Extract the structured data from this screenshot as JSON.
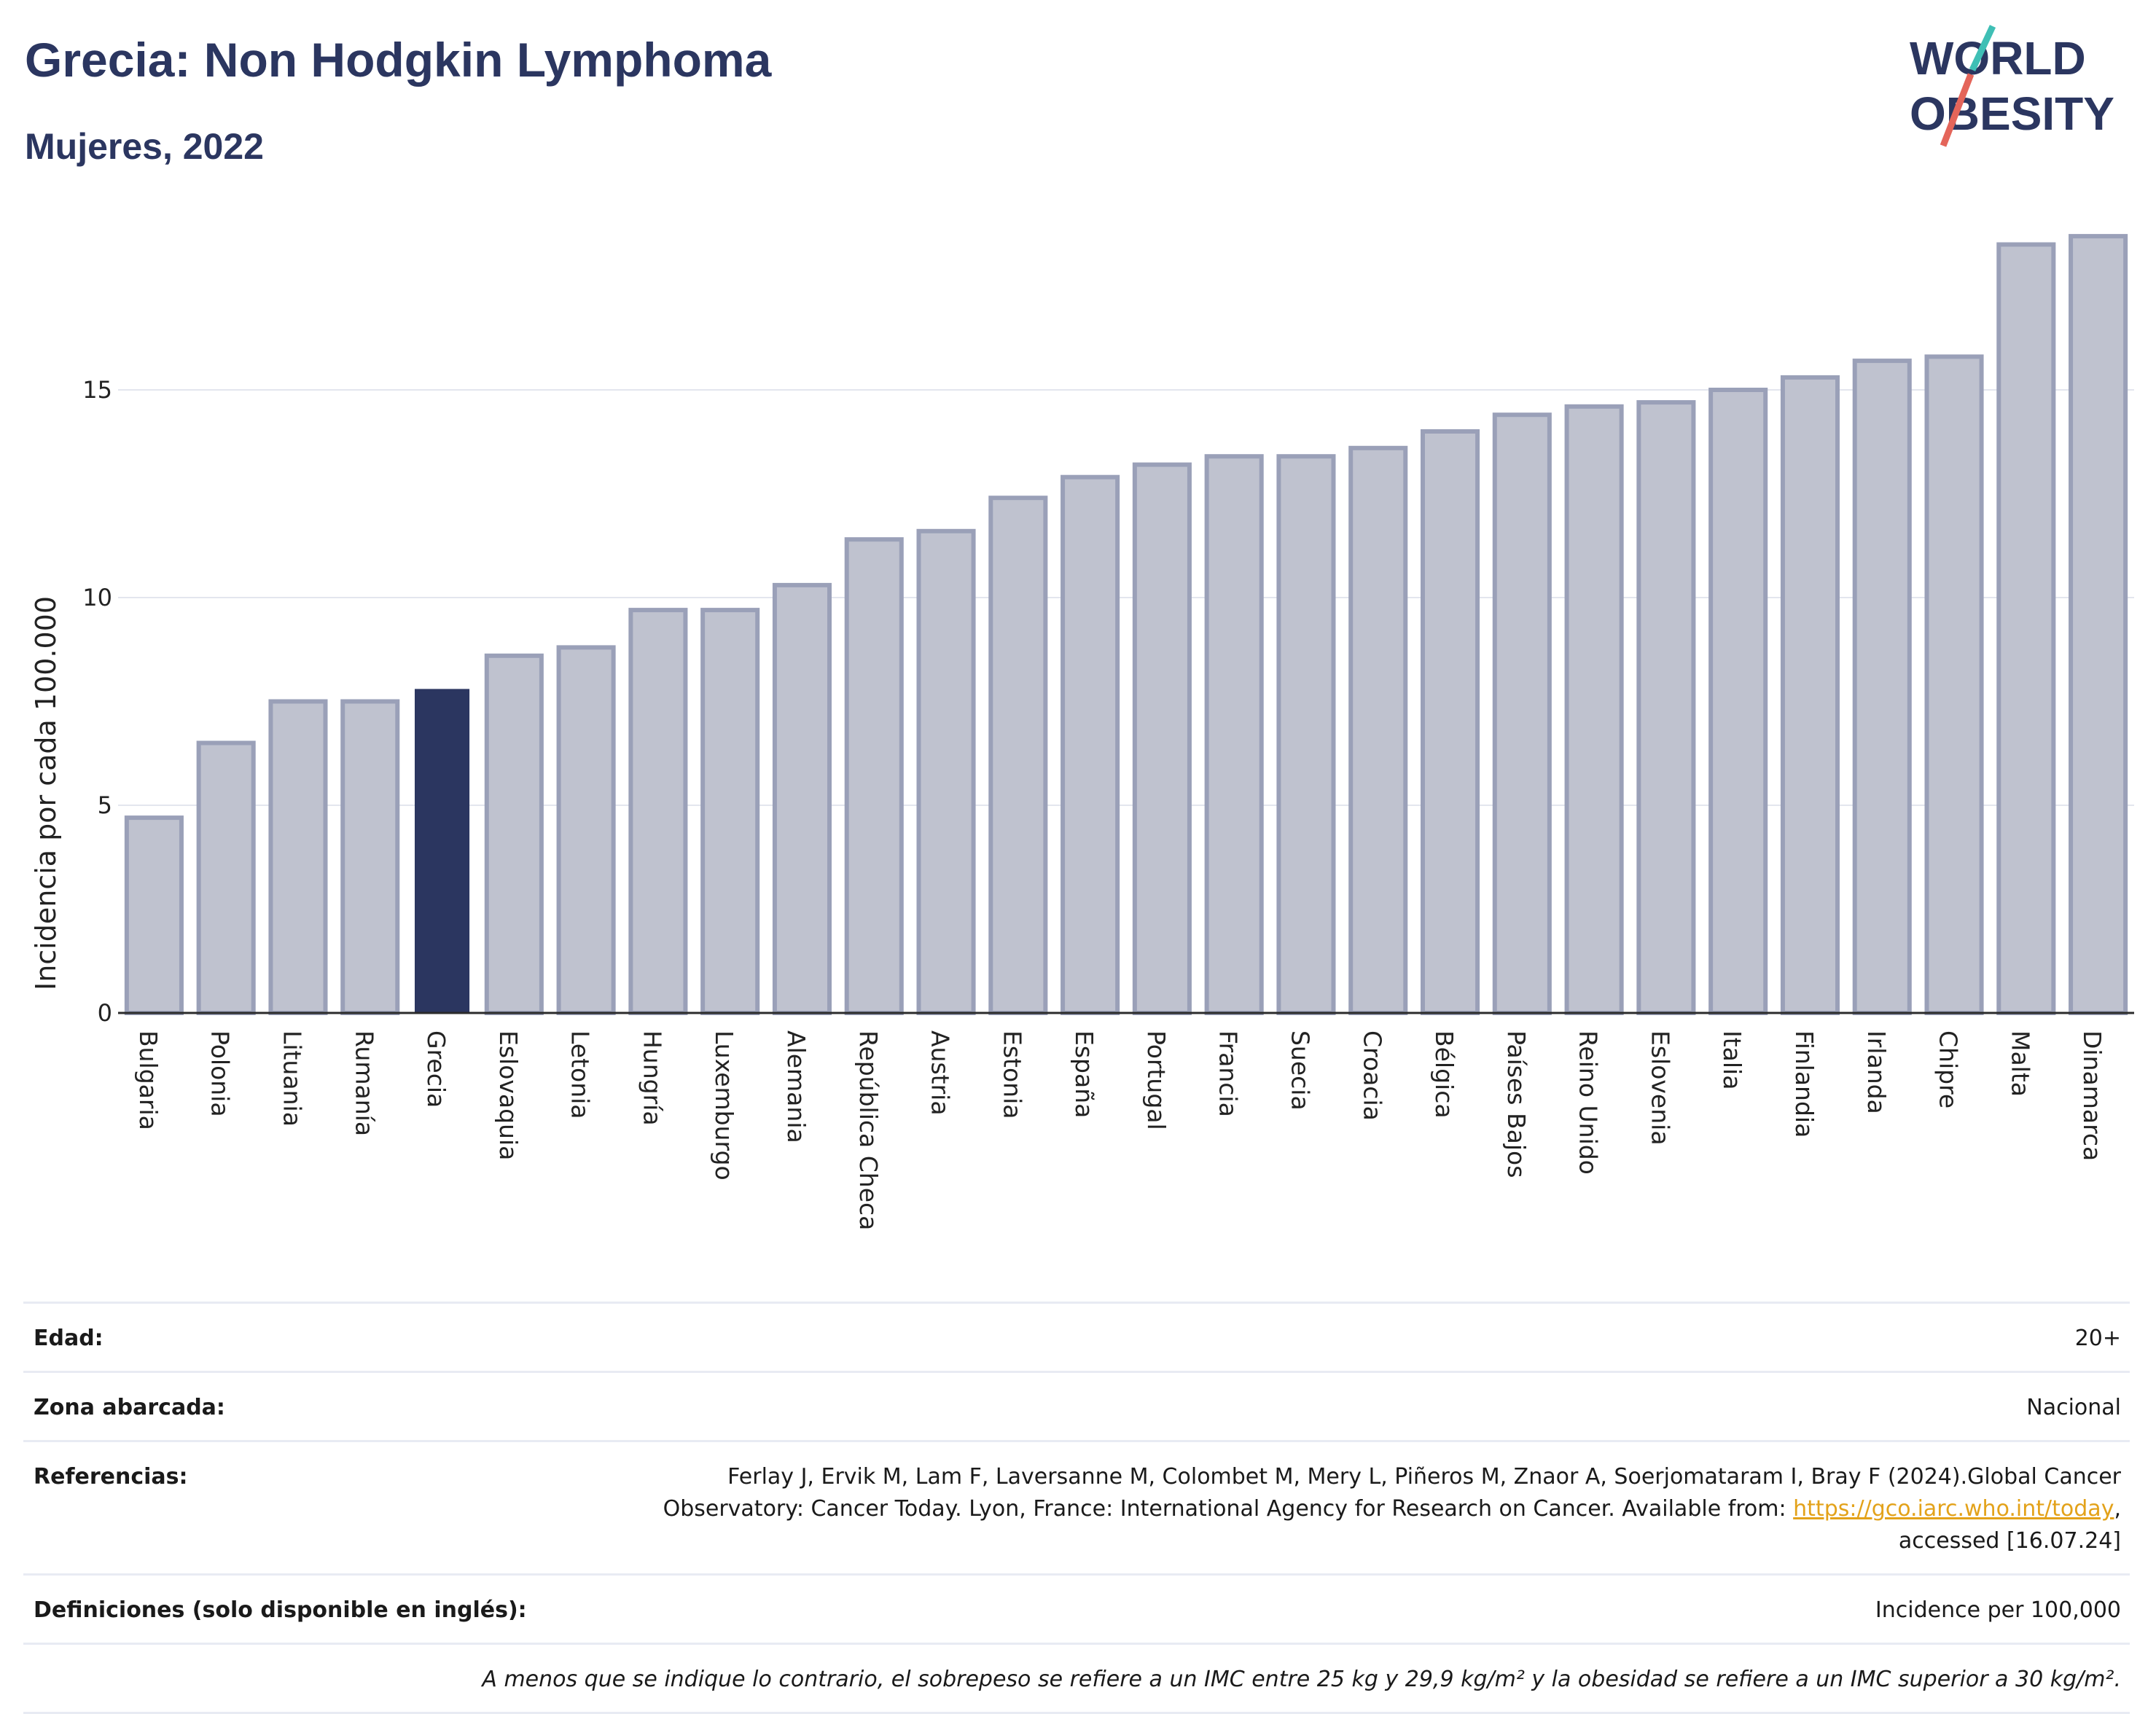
{
  "header": {
    "title": "Grecia: Non Hodgkin Lymphoma",
    "subtitle": "Mujeres, 2022"
  },
  "logo": {
    "line1": "WORLD",
    "line2": "OBESITY",
    "accent_colors": [
      "#3fbfb5",
      "#e4655a"
    ],
    "text_color": "#2b3660"
  },
  "chart_data": {
    "type": "bar",
    "ylabel": "Incidencia por cada 100.000",
    "ylim": [
      0,
      19
    ],
    "yticks": [
      0,
      5,
      10,
      15
    ],
    "grid": true,
    "highlight": "Grecia",
    "highlight_color": "#2b3660",
    "bar_color": "#bfc2cf",
    "categories": [
      "Bulgaria",
      "Polonia",
      "Lituania",
      "Rumanía",
      "Grecia",
      "Eslovaquia",
      "Letonia",
      "Hungría",
      "Luxemburgo",
      "Alemania",
      "República Checa",
      "Austria",
      "Estonia",
      "España",
      "Portugal",
      "Francia",
      "Suecia",
      "Croacia",
      "Bélgica",
      "Países Bajos",
      "Reino Unido",
      "Eslovenia",
      "Italia",
      "Finlandia",
      "Irlanda",
      "Chipre",
      "Malta",
      "Dinamarca"
    ],
    "values": [
      4.7,
      6.5,
      7.5,
      7.5,
      7.8,
      8.6,
      8.8,
      9.7,
      9.7,
      10.3,
      11.4,
      11.6,
      12.4,
      12.9,
      13.2,
      13.4,
      13.4,
      13.6,
      14.0,
      14.4,
      14.6,
      14.7,
      15.0,
      15.3,
      15.7,
      15.8,
      18.5,
      18.7
    ]
  },
  "meta": {
    "age_label": "Edad:",
    "age_value": "20+",
    "area_label": "Zona abarcada:",
    "area_value": "Nacional",
    "refs_label": "Referencias:",
    "refs_text_1": "Ferlay J, Ervik M, Lam F, Laversanne M, Colombet M, Mery L, Piñeros M, Znaor A, Soerjomataram I, Bray F (2024).Global Cancer",
    "refs_text_2": "Observatory: Cancer Today. Lyon, France: International Agency for Research on Cancer. Available from: ",
    "refs_link": "https://gco.iarc.who.int/today",
    "refs_text_3": ",",
    "refs_text_4": "accessed [16.07.24]",
    "defs_label": "Definiciones (solo disponible en inglés):",
    "defs_value": "Incidence per 100,000",
    "note": "A menos que se indique lo contrario, el sobrepeso se refiere a un IMC entre 25 kg y 29,9 kg/m² y la obesidad se refiere a un IMC superior a 30 kg/m²."
  }
}
